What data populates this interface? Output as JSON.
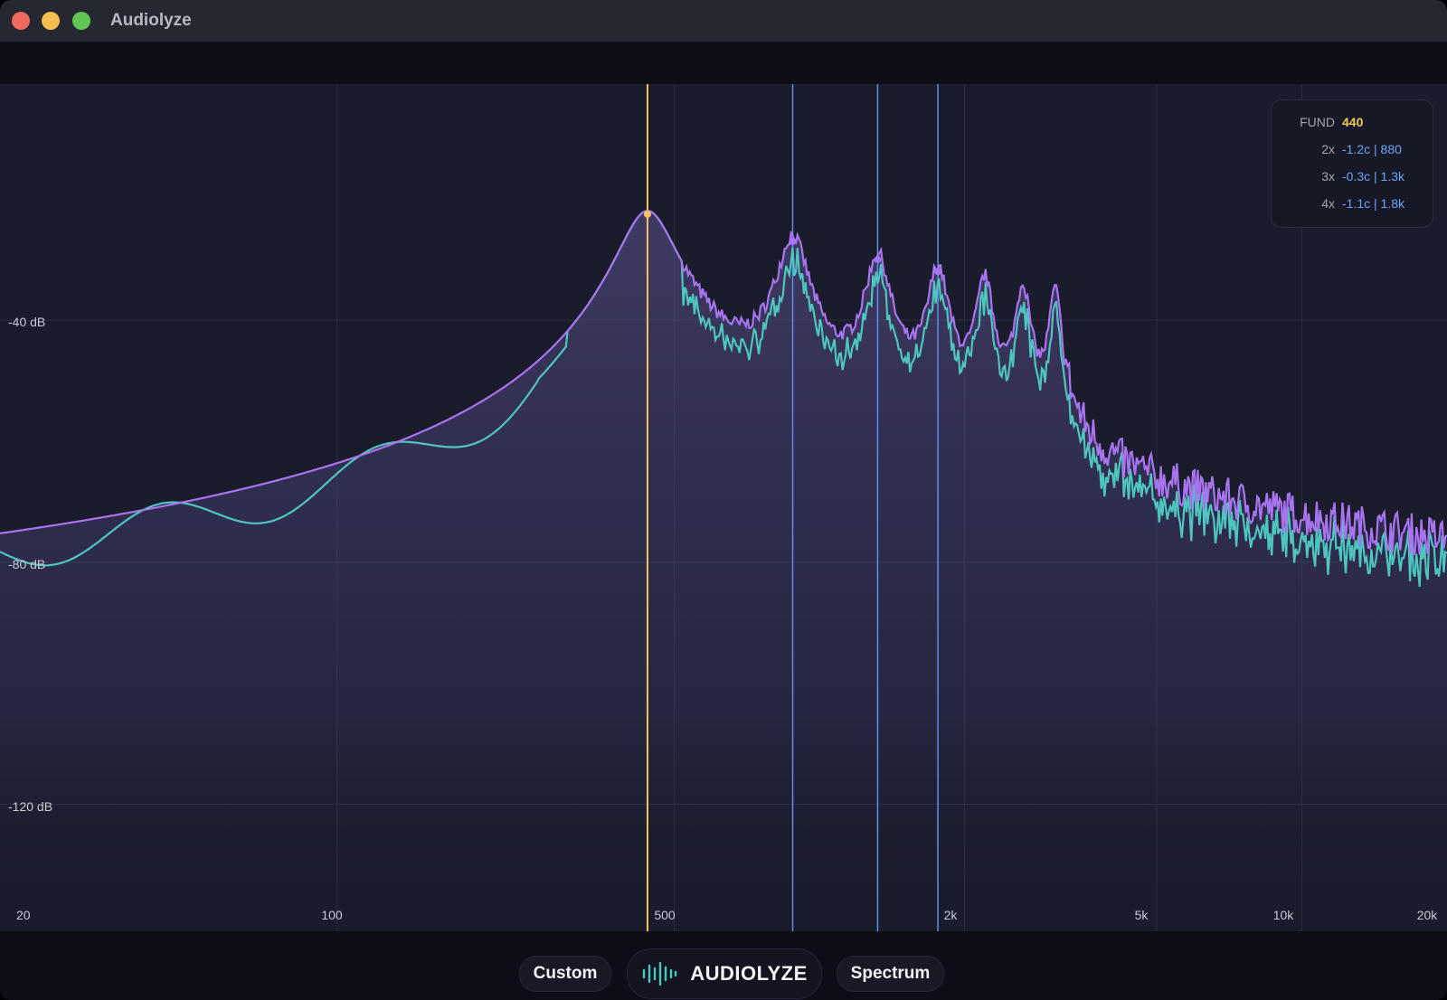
{
  "window": {
    "title": "Audiolyze"
  },
  "axes": {
    "y_labels": [
      "-40 dB",
      "-80 dB",
      "-120 dB"
    ],
    "x_labels": [
      "20",
      "100",
      "500",
      "2k",
      "5k",
      "10k",
      "20k"
    ]
  },
  "harmonics": {
    "fundamental": {
      "label": "FUND",
      "value": "440"
    },
    "rows": [
      {
        "label": "2x",
        "value": "-1.2c | 880"
      },
      {
        "label": "3x",
        "value": "-0.3c | 1.3k"
      },
      {
        "label": "4x",
        "value": "-1.1c | 1.8k"
      }
    ]
  },
  "bottom": {
    "left_button": "Custom",
    "logo_text": "AUDIOLYZE",
    "right_button": "Spectrum"
  },
  "colors": {
    "fundamental_marker": "#f5c55c",
    "harmonic_marker": "#5f8fe8",
    "spectrum_purple": "#a874f0",
    "spectrum_teal": "#4fc5c0"
  },
  "icons": {
    "logo": "waveform-icon"
  }
}
